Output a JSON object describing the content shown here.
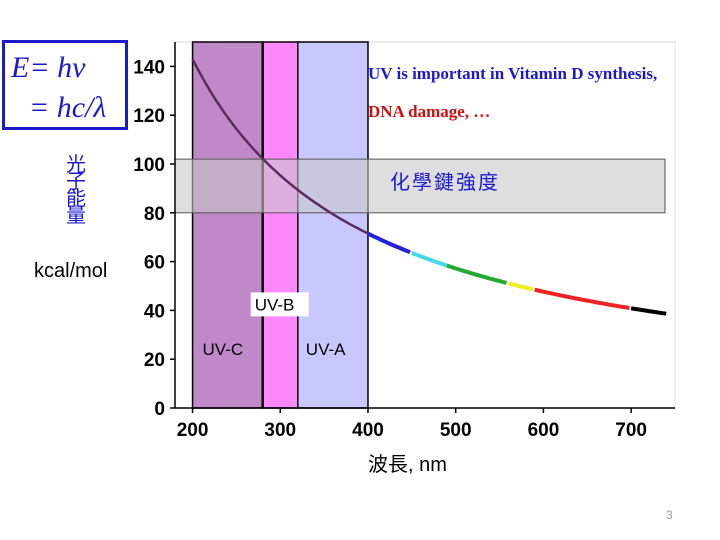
{
  "formula": {
    "line1": "E= hν",
    "line2": "= hc/λ"
  },
  "notes": {
    "line1": "UV is important in Vitamin D synthesis,",
    "line2": "DNA damage, …"
  },
  "y_label": {
    "text": "光子能量",
    "unit": "kcal/mol"
  },
  "x_label": {
    "text": "波長",
    "unit": ", nm"
  },
  "page_number": "3",
  "colors": {
    "text_blue": "#1a1acc",
    "note_red": "#cc1111",
    "uvc": "#c088c8",
    "uvb": "#ff88ff",
    "uva": "#c8c8ff",
    "band": "#c8c8c8"
  },
  "chart_data": {
    "type": "line",
    "title": "",
    "xlabel": "波長, nm",
    "ylabel": "光子能量 kcal/mol",
    "xlim": [
      180,
      750
    ],
    "ylim": [
      0,
      150
    ],
    "x_ticks": [
      "200",
      "300",
      "400",
      "500",
      "600",
      "700"
    ],
    "y_ticks": [
      "0",
      "20",
      "40",
      "60",
      "80",
      "100",
      "120",
      "140"
    ],
    "regions": [
      {
        "name": "UV-C",
        "x_start": 200,
        "x_end": 280,
        "label": "UV-C"
      },
      {
        "name": "UV-B",
        "x_start": 280,
        "x_end": 320,
        "label": "UV-B"
      },
      {
        "name": "UV-A",
        "x_start": 320,
        "x_end": 400,
        "label": "UV-A"
      }
    ],
    "band": {
      "label": "化學鍵強度",
      "y_start": 80,
      "y_end": 102
    },
    "series": [
      {
        "name": "E = hc/λ",
        "formula_constant": 28600,
        "x_start": 200,
        "x_end": 740,
        "color_segments": [
          {
            "x_start": 200,
            "x_end": 400,
            "color": "#5a2a60"
          },
          {
            "x_start": 400,
            "x_end": 450,
            "color": "#2222dd"
          },
          {
            "x_start": 450,
            "x_end": 490,
            "color": "#44d8e8"
          },
          {
            "x_start": 490,
            "x_end": 560,
            "color": "#22aa33"
          },
          {
            "x_start": 560,
            "x_end": 590,
            "color": "#eeee22"
          },
          {
            "x_start": 590,
            "x_end": 700,
            "color": "#ee2222"
          },
          {
            "x_start": 700,
            "x_end": 740,
            "color": "#000000"
          }
        ]
      }
    ]
  }
}
